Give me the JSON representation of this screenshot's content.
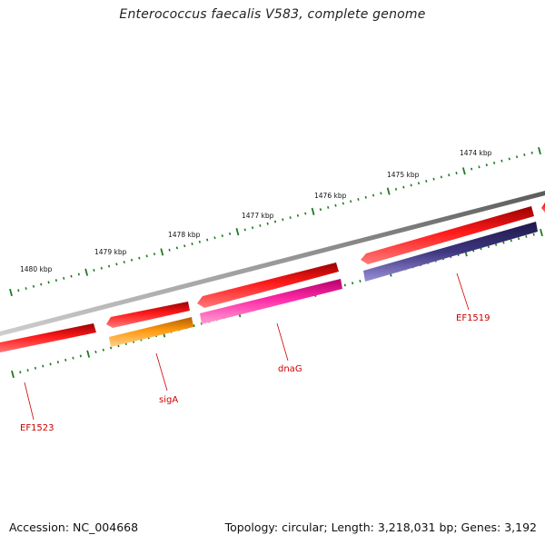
{
  "title": "Enterococcus faecalis V583, complete genome",
  "footer": {
    "accession": "Accession: NC_004668",
    "summary": "Topology: circular; Length: 3,218,031 bp; Genes: 3,192"
  },
  "scale_labels": [
    "1474 kbp",
    "1475 kbp",
    "1476 kbp",
    "1477 kbp",
    "1478 kbp",
    "1479 kbp",
    "1480 kbp"
  ],
  "gene_labels": [
    "EF1519",
    "dnaG",
    "sigA",
    "EF1523"
  ],
  "colors": {
    "backbone": "#8a8a8a",
    "forward_gene": "#e00000",
    "dnaG": "#ee1c8c",
    "sigA": "#f28a00",
    "EF1519": "#3c3478",
    "scale": "#1f7a1f",
    "label": "#cc0000"
  }
}
